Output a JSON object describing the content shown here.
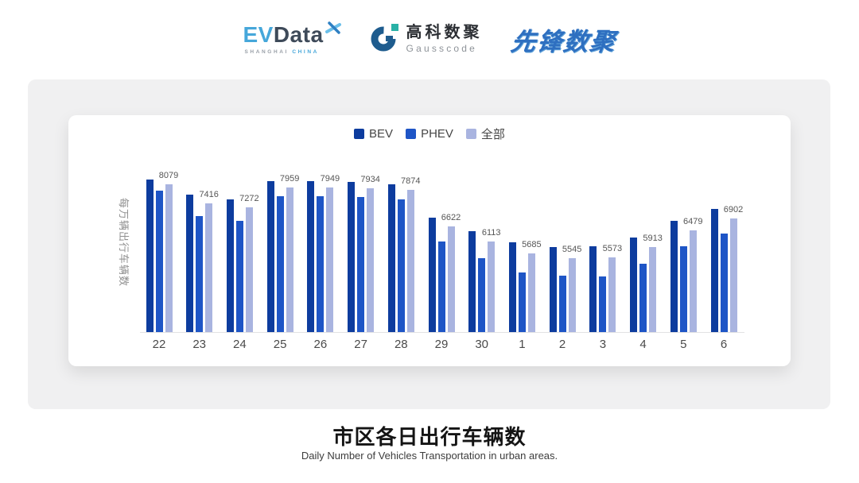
{
  "header": {
    "evdata": {
      "ev": "EV",
      "data": "Data",
      "sub_shanghai": "SHANGHAI",
      "sub_china": "CHINA"
    },
    "gausscode": {
      "cn": "高科数聚",
      "en": "Gausscode"
    },
    "xianfeng": {
      "text": "先锋数聚"
    }
  },
  "chart_data": {
    "type": "bar",
    "categories": [
      "22",
      "23",
      "24",
      "25",
      "26",
      "27",
      "28",
      "29",
      "30",
      "1",
      "2",
      "3",
      "4",
      "5",
      "6"
    ],
    "series": [
      {
        "key": "bev",
        "name": "BEV",
        "color": "#0d3c9e",
        "estimated": true,
        "values": [
          8240,
          7700,
          7560,
          8170,
          8170,
          8140,
          8070,
          6930,
          6450,
          6070,
          5910,
          5930,
          6240,
          6800,
          7230
        ]
      },
      {
        "key": "phev",
        "name": "PHEV",
        "color": "#1e55c6",
        "estimated": true,
        "values": [
          7860,
          6990,
          6800,
          7670,
          7650,
          7620,
          7550,
          6100,
          5540,
          5030,
          4940,
          4920,
          5340,
          5930,
          6380
        ]
      },
      {
        "key": "all",
        "name": "全部",
        "color": "#a9b4e0",
        "estimated": false,
        "values": [
          8079,
          7416,
          7272,
          7959,
          7949,
          7934,
          7874,
          6622,
          6113,
          5685,
          5545,
          5573,
          5913,
          6479,
          6902
        ]
      }
    ],
    "value_labels_series": "全部",
    "ylabel": "每万辆出行车辆数",
    "ylim": [
      3000,
      8500
    ],
    "legend_position": "top",
    "grid": false
  },
  "footer": {
    "title": "市区各日出行车辆数",
    "subtitle": "Daily Number of Vehicles Transportation in urban areas."
  },
  "colors": {
    "panel_bg": "#f0f0f1",
    "card_bg": "#ffffff",
    "axis_line": "#e2e2e4"
  }
}
